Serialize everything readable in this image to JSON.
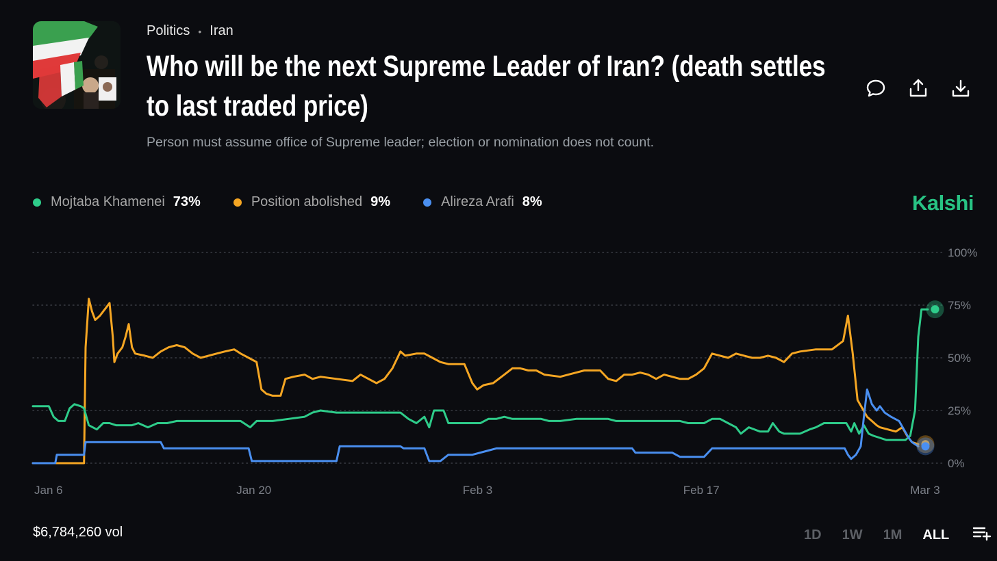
{
  "header": {
    "breadcrumb": [
      "Politics",
      "Iran"
    ],
    "title": "Who will be the next Supreme Leader of Iran? (death settles to last traded price)",
    "subtitle": "Person must assume office of Supreme leader; election or nomination does not count."
  },
  "actions": [
    {
      "name": "comment-icon"
    },
    {
      "name": "share-icon"
    },
    {
      "name": "download-icon"
    }
  ],
  "brand": "Kalshi",
  "legend": [
    {
      "name": "Mojtaba Khamenei",
      "pct": "73%",
      "color": "#2ecc8a"
    },
    {
      "name": "Position abolished",
      "pct": "9%",
      "color": "#f5a623"
    },
    {
      "name": "Alireza Arafi",
      "pct": "8%",
      "color": "#4a8ff0"
    }
  ],
  "footer": {
    "volume": "$6,784,260 vol",
    "ranges": [
      "1D",
      "1W",
      "1M",
      "ALL"
    ],
    "active_range": "ALL"
  },
  "chart_data": {
    "type": "line",
    "title": "",
    "xlabel": "",
    "ylabel": "",
    "x_ticks": [
      {
        "label": "Jan 6",
        "day": 0
      },
      {
        "label": "Jan 20",
        "day": 14
      },
      {
        "label": "Feb 3",
        "day": 28
      },
      {
        "label": "Feb 17",
        "day": 42
      },
      {
        "label": "Mar 3",
        "day": 56
      }
    ],
    "xlim": [
      0,
      56.9
    ],
    "ylim": [
      0,
      100
    ],
    "y_ticks": [
      {
        "label": "100%",
        "value": 100
      },
      {
        "label": "75%",
        "value": 75
      },
      {
        "label": "50%",
        "value": 50
      },
      {
        "label": "25%",
        "value": 25
      },
      {
        "label": "0%",
        "value": 0
      }
    ],
    "grid": "dotted",
    "series": [
      {
        "name": "Position abolished",
        "color": "#f5a623",
        "current": 9,
        "points": [
          [
            0,
            0
          ],
          [
            3.2,
            0
          ],
          [
            3.3,
            55
          ],
          [
            3.5,
            78
          ],
          [
            3.7,
            72
          ],
          [
            3.9,
            68
          ],
          [
            4.2,
            70
          ],
          [
            4.4,
            72
          ],
          [
            4.6,
            74
          ],
          [
            4.8,
            76
          ],
          [
            5.0,
            60
          ],
          [
            5.1,
            48
          ],
          [
            5.3,
            52
          ],
          [
            5.6,
            55
          ],
          [
            5.8,
            60
          ],
          [
            6.0,
            66
          ],
          [
            6.2,
            55
          ],
          [
            6.4,
            52
          ],
          [
            7.0,
            51
          ],
          [
            7.5,
            50
          ],
          [
            8.0,
            53
          ],
          [
            8.5,
            55
          ],
          [
            9.0,
            56
          ],
          [
            9.5,
            55
          ],
          [
            10.0,
            52
          ],
          [
            10.5,
            50
          ],
          [
            11.5,
            52
          ],
          [
            12.0,
            53
          ],
          [
            12.6,
            54
          ],
          [
            13.0,
            52
          ],
          [
            13.5,
            50
          ],
          [
            14.0,
            48
          ],
          [
            14.3,
            35
          ],
          [
            14.6,
            33
          ],
          [
            15.0,
            32
          ],
          [
            15.5,
            32
          ],
          [
            15.8,
            40
          ],
          [
            16.3,
            41
          ],
          [
            17.0,
            42
          ],
          [
            17.5,
            40
          ],
          [
            18.0,
            41
          ],
          [
            19.0,
            40
          ],
          [
            20.0,
            39
          ],
          [
            20.5,
            42
          ],
          [
            21.0,
            40
          ],
          [
            21.5,
            38
          ],
          [
            22.0,
            40
          ],
          [
            22.5,
            45
          ],
          [
            23.0,
            53
          ],
          [
            23.3,
            51
          ],
          [
            24.0,
            52
          ],
          [
            24.5,
            52
          ],
          [
            25.0,
            50
          ],
          [
            25.5,
            48
          ],
          [
            26.0,
            47
          ],
          [
            27.0,
            47
          ],
          [
            27.5,
            38
          ],
          [
            27.8,
            35
          ],
          [
            28.2,
            37
          ],
          [
            28.8,
            38
          ],
          [
            29.5,
            42
          ],
          [
            30.0,
            45
          ],
          [
            30.5,
            45
          ],
          [
            31.0,
            44
          ],
          [
            31.5,
            44
          ],
          [
            32.0,
            42
          ],
          [
            33.0,
            41
          ],
          [
            33.5,
            42
          ],
          [
            34.0,
            43
          ],
          [
            34.5,
            44
          ],
          [
            35.0,
            44
          ],
          [
            35.5,
            44
          ],
          [
            36.0,
            40
          ],
          [
            36.5,
            39
          ],
          [
            37.0,
            42
          ],
          [
            37.5,
            42
          ],
          [
            38.0,
            43
          ],
          [
            38.5,
            42
          ],
          [
            39.0,
            40
          ],
          [
            39.5,
            42
          ],
          [
            40.0,
            41
          ],
          [
            40.5,
            40
          ],
          [
            41.0,
            40
          ],
          [
            41.5,
            42
          ],
          [
            42.0,
            45
          ],
          [
            42.5,
            52
          ],
          [
            43.0,
            51
          ],
          [
            43.5,
            50
          ],
          [
            44.0,
            52
          ],
          [
            44.5,
            51
          ],
          [
            45.0,
            50
          ],
          [
            45.5,
            50
          ],
          [
            46.0,
            51
          ],
          [
            46.5,
            50
          ],
          [
            47.0,
            48
          ],
          [
            47.5,
            52
          ],
          [
            48.0,
            53
          ],
          [
            49.0,
            54
          ],
          [
            50.0,
            54
          ],
          [
            50.7,
            58
          ],
          [
            51.0,
            70
          ],
          [
            51.3,
            52
          ],
          [
            51.6,
            30
          ],
          [
            51.9,
            26
          ],
          [
            52.2,
            22
          ],
          [
            52.5,
            20
          ],
          [
            52.8,
            18
          ],
          [
            53.0,
            17
          ],
          [
            53.5,
            16
          ],
          [
            54.0,
            15
          ],
          [
            54.4,
            17
          ],
          [
            54.7,
            13
          ],
          [
            55.0,
            10
          ],
          [
            55.4,
            9
          ]
        ]
      },
      {
        "name": "Mojtaba Khamenei",
        "color": "#2ecc8a",
        "current": 73,
        "points": [
          [
            0,
            27
          ],
          [
            1.0,
            27
          ],
          [
            1.3,
            22
          ],
          [
            1.6,
            20
          ],
          [
            2.0,
            20
          ],
          [
            2.3,
            26
          ],
          [
            2.6,
            28
          ],
          [
            3.0,
            27
          ],
          [
            3.2,
            26
          ],
          [
            3.5,
            18
          ],
          [
            4.0,
            16
          ],
          [
            4.4,
            19
          ],
          [
            4.8,
            19
          ],
          [
            5.2,
            18
          ],
          [
            5.6,
            18
          ],
          [
            6.2,
            18
          ],
          [
            6.6,
            19
          ],
          [
            7.2,
            17
          ],
          [
            7.8,
            19
          ],
          [
            8.4,
            19
          ],
          [
            9.0,
            20
          ],
          [
            10.0,
            20
          ],
          [
            11.0,
            20
          ],
          [
            12.0,
            20
          ],
          [
            13.0,
            20
          ],
          [
            13.6,
            17
          ],
          [
            14.0,
            20
          ],
          [
            15.0,
            20
          ],
          [
            16.0,
            21
          ],
          [
            17.0,
            22
          ],
          [
            17.5,
            24
          ],
          [
            18.0,
            25
          ],
          [
            19.0,
            24
          ],
          [
            20.0,
            24
          ],
          [
            21.0,
            24
          ],
          [
            22.0,
            24
          ],
          [
            23.0,
            24
          ],
          [
            23.5,
            21
          ],
          [
            24.0,
            19
          ],
          [
            24.5,
            22
          ],
          [
            24.8,
            17
          ],
          [
            25.1,
            25
          ],
          [
            25.7,
            25
          ],
          [
            26.0,
            19
          ],
          [
            26.5,
            19
          ],
          [
            27.0,
            19
          ],
          [
            28.0,
            19
          ],
          [
            28.5,
            21
          ],
          [
            29.0,
            21
          ],
          [
            29.5,
            22
          ],
          [
            30.0,
            21
          ],
          [
            31.0,
            21
          ],
          [
            31.8,
            21
          ],
          [
            32.3,
            20
          ],
          [
            33.0,
            20
          ],
          [
            34.0,
            21
          ],
          [
            35.0,
            21
          ],
          [
            36.0,
            21
          ],
          [
            36.5,
            20
          ],
          [
            37.5,
            20
          ],
          [
            38.5,
            20
          ],
          [
            39.0,
            20
          ],
          [
            40.0,
            20
          ],
          [
            40.5,
            20
          ],
          [
            41.0,
            19
          ],
          [
            42.0,
            19
          ],
          [
            42.5,
            21
          ],
          [
            43.0,
            21
          ],
          [
            43.5,
            19
          ],
          [
            44.0,
            17
          ],
          [
            44.3,
            14
          ],
          [
            44.8,
            17
          ],
          [
            45.5,
            15
          ],
          [
            46.0,
            15
          ],
          [
            46.3,
            19
          ],
          [
            46.7,
            15
          ],
          [
            47.0,
            14
          ],
          [
            48.0,
            14
          ],
          [
            48.6,
            16
          ],
          [
            49.0,
            17
          ],
          [
            49.5,
            19
          ],
          [
            50.0,
            19
          ],
          [
            50.5,
            19
          ],
          [
            50.9,
            19
          ],
          [
            51.2,
            15
          ],
          [
            51.4,
            19
          ],
          [
            51.7,
            14
          ],
          [
            52.0,
            18
          ],
          [
            52.3,
            14
          ],
          [
            52.6,
            13
          ],
          [
            53.0,
            12
          ],
          [
            53.4,
            11
          ],
          [
            54.0,
            11
          ],
          [
            54.6,
            11
          ],
          [
            54.9,
            13
          ],
          [
            55.2,
            25
          ],
          [
            55.4,
            60
          ],
          [
            55.6,
            73
          ],
          [
            56.0,
            73
          ]
        ]
      },
      {
        "name": "Alireza Arafi",
        "color": "#4a8ff0",
        "current": 8,
        "points": [
          [
            0,
            0
          ],
          [
            1.4,
            0
          ],
          [
            1.5,
            4
          ],
          [
            3.2,
            4
          ],
          [
            3.3,
            10
          ],
          [
            5.0,
            10
          ],
          [
            8.0,
            10
          ],
          [
            8.2,
            7
          ],
          [
            10.0,
            7
          ],
          [
            13.5,
            7
          ],
          [
            13.7,
            1
          ],
          [
            15.0,
            1
          ],
          [
            19.0,
            1
          ],
          [
            19.2,
            8
          ],
          [
            21.0,
            8
          ],
          [
            23.0,
            8
          ],
          [
            23.2,
            7
          ],
          [
            24.5,
            7
          ],
          [
            24.8,
            1
          ],
          [
            25.5,
            1
          ],
          [
            26.0,
            4
          ],
          [
            27.5,
            4
          ],
          [
            28.5,
            6
          ],
          [
            29.0,
            7
          ],
          [
            32.0,
            7
          ],
          [
            35.0,
            7
          ],
          [
            37.5,
            7
          ],
          [
            37.7,
            5
          ],
          [
            40.0,
            5
          ],
          [
            40.5,
            3
          ],
          [
            42.0,
            3
          ],
          [
            42.5,
            7
          ],
          [
            45.0,
            7
          ],
          [
            50.0,
            7
          ],
          [
            50.8,
            7
          ],
          [
            51.0,
            4
          ],
          [
            51.2,
            2
          ],
          [
            51.5,
            4
          ],
          [
            51.8,
            8
          ],
          [
            52.0,
            22
          ],
          [
            52.2,
            35
          ],
          [
            52.5,
            28
          ],
          [
            52.8,
            25
          ],
          [
            53.0,
            27
          ],
          [
            53.3,
            24
          ],
          [
            53.7,
            22
          ],
          [
            54.2,
            20
          ],
          [
            54.5,
            16
          ],
          [
            54.8,
            12
          ],
          [
            55.0,
            10
          ],
          [
            55.4,
            8
          ]
        ]
      }
    ]
  }
}
